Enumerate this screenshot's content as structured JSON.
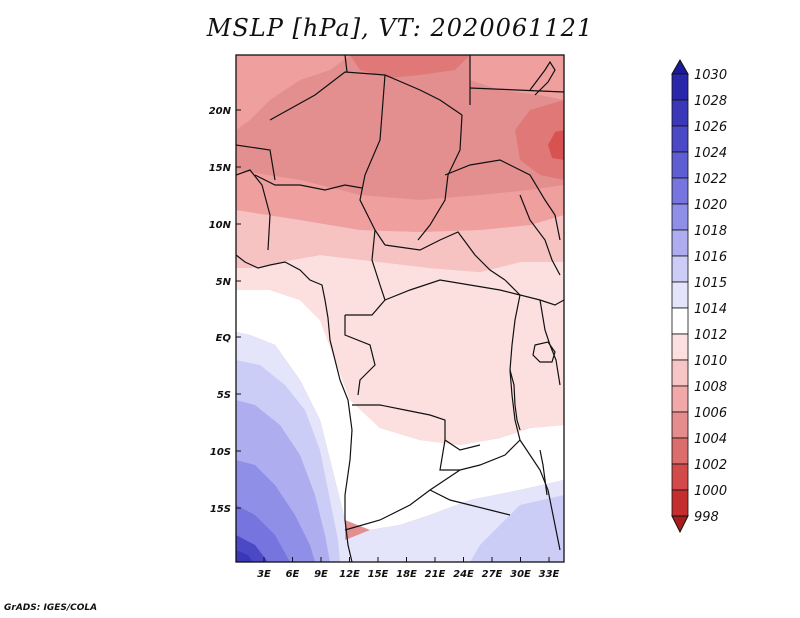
{
  "title": "MSLP [hPa], VT: 2020061121",
  "credit": "GrADS: IGES/COLA",
  "lat_ticks": [
    "20N",
    "15N",
    "10N",
    "5N",
    "EQ",
    "5S",
    "10S",
    "15S"
  ],
  "lon_ticks": [
    "3E",
    "6E",
    "9E",
    "12E",
    "15E",
    "18E",
    "21E",
    "24E",
    "27E",
    "30E",
    "33E"
  ],
  "colorbar": {
    "levels": [
      "1030",
      "1028",
      "1026",
      "1024",
      "1022",
      "1020",
      "1018",
      "1016",
      "1015",
      "1014",
      "1012",
      "1010",
      "1008",
      "1006",
      "1004",
      "1002",
      "1000",
      "998"
    ],
    "colors": [
      "#1e1a9c",
      "#2b27aa",
      "#3a37b8",
      "#4b49c6",
      "#5e5dd2",
      "#7674de",
      "#908fe8",
      "#aeadf0",
      "#cccdf6",
      "#e4e5fb",
      "#ffffff",
      "#fce0e0",
      "#f7c5c5",
      "#f0a8a8",
      "#e58c8c",
      "#dc6d6d",
      "#d24a4a",
      "#c42e2e",
      "#a81c1c"
    ]
  },
  "map_colors": {
    "f1008": "#e48f8f",
    "f1010": "#f09f9f",
    "f1006": "#e07878",
    "f1004": "#d95252",
    "f1012": "#f7c2c2",
    "f1013": "#fcdfdf",
    "f1014": "#ffffff",
    "f1015": "#e4e5fb",
    "f1016": "#cccdf6",
    "f1018": "#aeadf0",
    "f1020": "#908fe8",
    "f1022": "#7674de",
    "f1024": "#4b49c6",
    "f1026": "#3a37b8",
    "border": "#111111"
  }
}
